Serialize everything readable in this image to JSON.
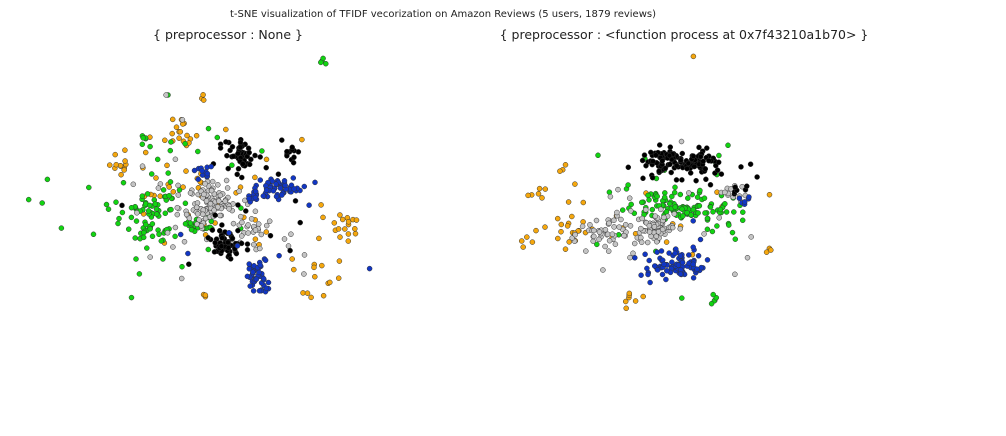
{
  "figure": {
    "title": "t-SNE visualization of TFIDF vecorization on Amazon Reviews (5 users, 1879 reviews)"
  },
  "colors": {
    "class_0": "#f5a70d",
    "class_1": "#11d411",
    "class_2": "#c4c4c4",
    "class_3": "#000000",
    "class_4": "#1136c4",
    "outline": "#333333"
  },
  "chart_data": [
    {
      "type": "scatter",
      "title": "{ preprocessor : None }",
      "axes": "off",
      "grid": false,
      "legend": "none",
      "xlim": [
        0,
        100
      ],
      "ylim": [
        0,
        100
      ],
      "series": [
        {
          "color": "#f5a70d",
          "clusters": [
            {
              "cx": 9,
              "cy": 73,
              "sx": 2,
              "sy": 3,
              "n": 12
            },
            {
              "cx": 31,
              "cy": 84,
              "sx": 5,
              "sy": 4,
              "n": 18
            },
            {
              "cx": 91,
              "cy": 47,
              "sx": 3,
              "sy": 4,
              "n": 18
            },
            {
              "cx": 83,
              "cy": 26,
              "sx": 4,
              "sy": 6,
              "n": 14
            },
            {
              "cx": 40,
              "cy": 58,
              "sx": 18,
              "sy": 14,
              "n": 40
            },
            {
              "cx": 40,
              "cy": 100,
              "sx": 1,
              "sy": 1,
              "n": 3
            },
            {
              "cx": 40,
              "cy": 17,
              "sx": 1,
              "sy": 1,
              "n": 3
            }
          ]
        },
        {
          "color": "#11d411",
          "clusters": [
            {
              "cx": 21,
              "cy": 50,
              "sx": 5,
              "sy": 7,
              "n": 70
            },
            {
              "cx": 38,
              "cy": 47,
              "sx": 3,
              "sy": 2,
              "n": 25
            },
            {
              "cx": 30,
              "cy": 55,
              "sx": 22,
              "sy": 18,
              "n": 35
            },
            {
              "cx": 84,
              "cy": 114,
              "sx": 1,
              "sy": 1,
              "n": 4
            },
            {
              "cx": 19,
              "cy": 82,
              "sx": 1,
              "sy": 1,
              "n": 5
            }
          ]
        },
        {
          "color": "#c4c4c4",
          "clusters": [
            {
              "cx": 43,
              "cy": 55,
              "sx": 5,
              "sy": 5,
              "n": 110
            },
            {
              "cx": 58,
              "cy": 45,
              "sx": 3,
              "sy": 4,
              "n": 20
            },
            {
              "cx": 50,
              "cy": 55,
              "sx": 22,
              "sy": 18,
              "n": 30
            }
          ]
        },
        {
          "color": "#000000",
          "clusters": [
            {
              "cx": 54,
              "cy": 75,
              "sx": 3,
              "sy": 3,
              "n": 50
            },
            {
              "cx": 72,
              "cy": 77,
              "sx": 2,
              "sy": 2,
              "n": 12
            },
            {
              "cx": 49,
              "cy": 39,
              "sx": 3,
              "sy": 3,
              "n": 60
            },
            {
              "cx": 55,
              "cy": 55,
              "sx": 18,
              "sy": 15,
              "n": 20
            }
          ]
        },
        {
          "color": "#1136c4",
          "clusters": [
            {
              "cx": 69,
              "cy": 62,
              "sx": 5,
              "sy": 2,
              "n": 45
            },
            {
              "cx": 59,
              "cy": 59,
              "sx": 2,
              "sy": 1.5,
              "n": 15
            },
            {
              "cx": 60,
              "cy": 25,
              "sx": 2,
              "sy": 3,
              "n": 45
            },
            {
              "cx": 40,
              "cy": 68,
              "sx": 2,
              "sy": 2,
              "n": 12
            },
            {
              "cx": 60,
              "cy": 50,
              "sx": 18,
              "sy": 18,
              "n": 10
            }
          ]
        }
      ]
    },
    {
      "type": "scatter",
      "title": "{ preprocessor : <function process at 0x7f43210a1b70> }",
      "axes": "off",
      "grid": false,
      "legend": "none",
      "xlim": [
        0,
        100
      ],
      "ylim": [
        0,
        100
      ],
      "series": [
        {
          "color": "#f5a70d",
          "clusters": [
            {
              "cx": 20,
              "cy": 47,
              "sx": 3,
              "sy": 6,
              "n": 18
            },
            {
              "cx": 9,
              "cy": 60,
              "sx": 2,
              "sy": 1.5,
              "n": 5
            },
            {
              "cx": 5,
              "cy": 40,
              "sx": 1,
              "sy": 1,
              "n": 4
            },
            {
              "cx": 40,
              "cy": 17,
              "sx": 1.5,
              "sy": 1.5,
              "n": 7
            },
            {
              "cx": 59,
              "cy": 116,
              "sx": 0.5,
              "sy": 0.5,
              "n": 1
            },
            {
              "cx": 85,
              "cy": 37,
              "sx": 1,
              "sy": 0.5,
              "n": 3
            },
            {
              "cx": 40,
              "cy": 55,
              "sx": 18,
              "sy": 16,
              "n": 20
            }
          ]
        },
        {
          "color": "#11d411",
          "clusters": [
            {
              "cx": 55,
              "cy": 55,
              "sx": 8,
              "sy": 3,
              "n": 90
            },
            {
              "cx": 70,
              "cy": 52,
              "sx": 4,
              "sy": 3,
              "n": 15
            },
            {
              "cx": 58,
              "cy": 55,
              "sx": 20,
              "sy": 16,
              "n": 25
            },
            {
              "cx": 66,
              "cy": 16,
              "sx": 1,
              "sy": 2,
              "n": 5
            }
          ]
        },
        {
          "color": "#c4c4c4",
          "clusters": [
            {
              "cx": 48,
              "cy": 46,
              "sx": 3,
              "sy": 3,
              "n": 70
            },
            {
              "cx": 30,
              "cy": 44,
              "sx": 5,
              "sy": 3,
              "n": 45
            },
            {
              "cx": 72,
              "cy": 60,
              "sx": 2,
              "sy": 1.5,
              "n": 12
            },
            {
              "cx": 45,
              "cy": 48,
              "sx": 16,
              "sy": 14,
              "n": 20
            }
          ]
        },
        {
          "color": "#000000",
          "clusters": [
            {
              "cx": 52,
              "cy": 73,
              "sx": 4,
              "sy": 3,
              "n": 70
            },
            {
              "cx": 61,
              "cy": 72,
              "sx": 3,
              "sy": 3,
              "n": 50
            },
            {
              "cx": 75,
              "cy": 62,
              "sx": 2,
              "sy": 1.5,
              "n": 6
            },
            {
              "cx": 60,
              "cy": 72,
              "sx": 10,
              "sy": 6,
              "n": 10
            }
          ]
        },
        {
          "color": "#1136c4",
          "clusters": [
            {
              "cx": 55,
              "cy": 31,
              "sx": 5,
              "sy": 2.5,
              "n": 80
            },
            {
              "cx": 76,
              "cy": 57,
              "sx": 1.5,
              "sy": 1.5,
              "n": 6
            },
            {
              "cx": 55,
              "cy": 35,
              "sx": 10,
              "sy": 7,
              "n": 10
            }
          ]
        }
      ]
    }
  ]
}
